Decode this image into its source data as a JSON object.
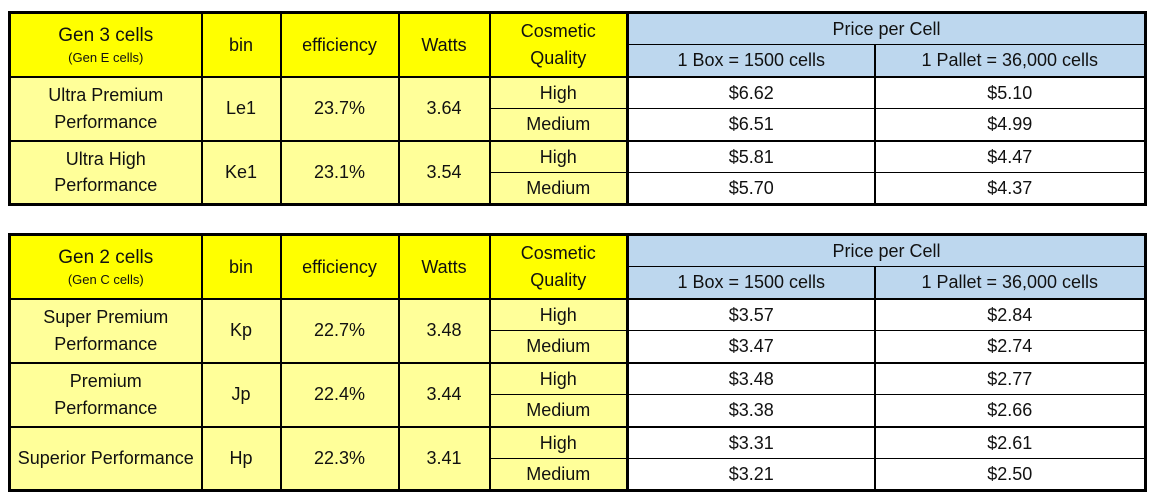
{
  "colors": {
    "header_yellow": "#FFFF00",
    "cell_yellow": "#FFFF99",
    "header_blue": "#BDD7EE",
    "border": "#000000"
  },
  "tables": [
    {
      "title": "Gen 3 cells",
      "subtitle": "(Gen E cells)",
      "headers": {
        "bin": "bin",
        "efficiency": "efficiency",
        "watts": "Watts",
        "cosmetic_quality": "Cosmetic Quality",
        "price_per_cell": "Price per Cell",
        "box": "1 Box = 1500 cells",
        "pallet": "1 Pallet = 36,000 cells"
      },
      "groups": [
        {
          "name": "Ultra Premium Performance",
          "bin": "Le1",
          "efficiency": "23.7%",
          "watts": "3.64",
          "rows": [
            {
              "quality": "High",
              "box": "$6.62",
              "pallet": "$5.10"
            },
            {
              "quality": "Medium",
              "box": "$6.51",
              "pallet": "$4.99"
            }
          ]
        },
        {
          "name": "Ultra High Performance",
          "bin": "Ke1",
          "efficiency": "23.1%",
          "watts": "3.54",
          "rows": [
            {
              "quality": "High",
              "box": "$5.81",
              "pallet": "$4.47"
            },
            {
              "quality": "Medium",
              "box": "$5.70",
              "pallet": "$4.37"
            }
          ]
        }
      ]
    },
    {
      "title": "Gen 2 cells",
      "subtitle": "(Gen C cells)",
      "headers": {
        "bin": "bin",
        "efficiency": "efficiency",
        "watts": "Watts",
        "cosmetic_quality": "Cosmetic Quality",
        "price_per_cell": "Price per Cell",
        "box": "1 Box = 1500 cells",
        "pallet": "1 Pallet = 36,000 cells"
      },
      "groups": [
        {
          "name": "Super Premium Performance",
          "bin": "Kp",
          "efficiency": "22.7%",
          "watts": "3.48",
          "rows": [
            {
              "quality": "High",
              "box": "$3.57",
              "pallet": "$2.84"
            },
            {
              "quality": "Medium",
              "box": "$3.47",
              "pallet": "$2.74"
            }
          ]
        },
        {
          "name": "Premium Performance",
          "bin": "Jp",
          "efficiency": "22.4%",
          "watts": "3.44",
          "rows": [
            {
              "quality": "High",
              "box": "$3.48",
              "pallet": "$2.77"
            },
            {
              "quality": "Medium",
              "box": "$3.38",
              "pallet": "$2.66"
            }
          ]
        },
        {
          "name": "Superior Performance",
          "bin": "Hp",
          "efficiency": "22.3%",
          "watts": "3.41",
          "rows": [
            {
              "quality": "High",
              "box": "$3.31",
              "pallet": "$2.61"
            },
            {
              "quality": "Medium",
              "box": "$3.21",
              "pallet": "$2.50"
            }
          ]
        }
      ]
    }
  ]
}
